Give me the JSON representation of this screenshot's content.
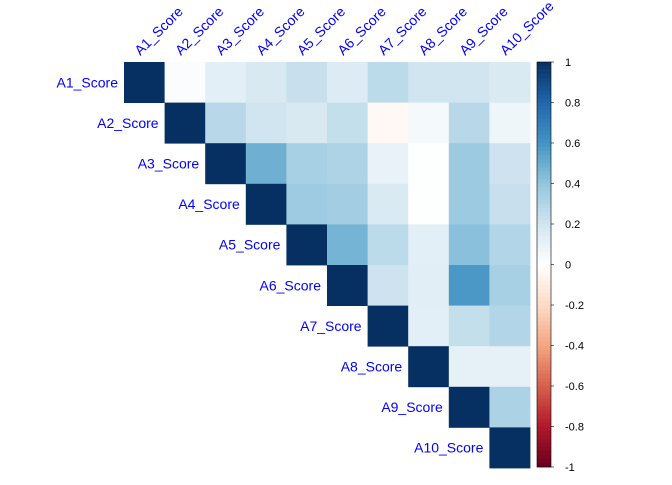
{
  "chart_data": {
    "type": "heatmap",
    "subtype": "correlation-upper-triangle",
    "variables": [
      "A1_Score",
      "A2_Score",
      "A3_Score",
      "A4_Score",
      "A5_Score",
      "A6_Score",
      "A7_Score",
      "A8_Score",
      "A9_Score",
      "A10_Score"
    ],
    "matrix": [
      [
        1.0,
        0.02,
        0.12,
        0.17,
        0.23,
        0.15,
        0.27,
        0.2,
        0.2,
        0.16
      ],
      [
        null,
        1.0,
        0.28,
        0.2,
        0.17,
        0.24,
        -0.04,
        0.05,
        0.28,
        0.07
      ],
      [
        null,
        null,
        1.0,
        0.49,
        0.33,
        0.31,
        0.1,
        0.01,
        0.37,
        0.21
      ],
      [
        null,
        null,
        null,
        1.0,
        0.36,
        0.35,
        0.16,
        0.01,
        0.37,
        0.23
      ],
      [
        null,
        null,
        null,
        null,
        1.0,
        0.47,
        0.27,
        0.12,
        0.42,
        0.3
      ],
      [
        null,
        null,
        null,
        null,
        null,
        1.0,
        0.21,
        0.13,
        0.58,
        0.33
      ],
      [
        null,
        null,
        null,
        null,
        null,
        null,
        1.0,
        0.12,
        0.24,
        0.3
      ],
      [
        null,
        null,
        null,
        null,
        null,
        null,
        null,
        1.0,
        0.11,
        0.11
      ],
      [
        null,
        null,
        null,
        null,
        null,
        null,
        null,
        null,
        1.0,
        0.32
      ],
      [
        null,
        null,
        null,
        null,
        null,
        null,
        null,
        null,
        null,
        1.0
      ]
    ],
    "colorbar": {
      "range": [
        -1,
        1
      ],
      "tick_labels": [
        "1",
        "0.8",
        "0.6",
        "0.4",
        "0.2",
        "0",
        "-0.2",
        "-0.4",
        "-0.6",
        "-0.8",
        "-1"
      ],
      "tick_values": [
        1,
        0.8,
        0.6,
        0.4,
        0.2,
        0,
        -0.2,
        -0.4,
        -0.6,
        -0.8,
        -1
      ],
      "low_color": "#67001f",
      "mid_color": "#ffffff",
      "high_color": "#053061"
    },
    "label_color": "#0000ff",
    "legend_position": "right"
  }
}
